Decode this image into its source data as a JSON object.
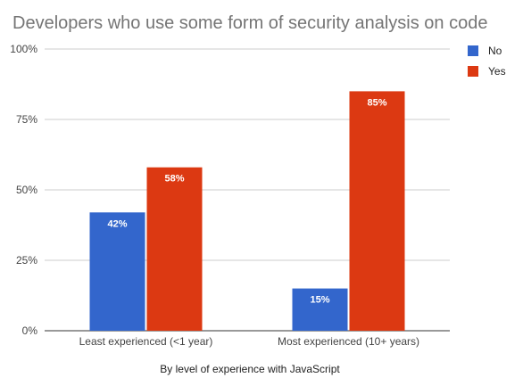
{
  "chart_data": {
    "type": "bar",
    "title": "Developers who use some form of security analysis on code",
    "xlabel": "By level of experience with JavaScript",
    "ylabel": "",
    "categories": [
      "Least experienced (<1 year)",
      "Most experienced (10+ years)"
    ],
    "series": [
      {
        "name": "No",
        "values": [
          42,
          15
        ],
        "labels": [
          "42%",
          "15%"
        ],
        "color": "#3366cc"
      },
      {
        "name": "Yes",
        "values": [
          58,
          85
        ],
        "labels": [
          "58%",
          "85%"
        ],
        "color": "#dc3912"
      }
    ],
    "ylim": [
      0,
      100
    ],
    "yticks": [
      0,
      25,
      50,
      75,
      100
    ],
    "ytick_labels": [
      "0%",
      "25%",
      "50%",
      "75%",
      "100%"
    ],
    "grid": true,
    "legend_position": "top-right"
  }
}
